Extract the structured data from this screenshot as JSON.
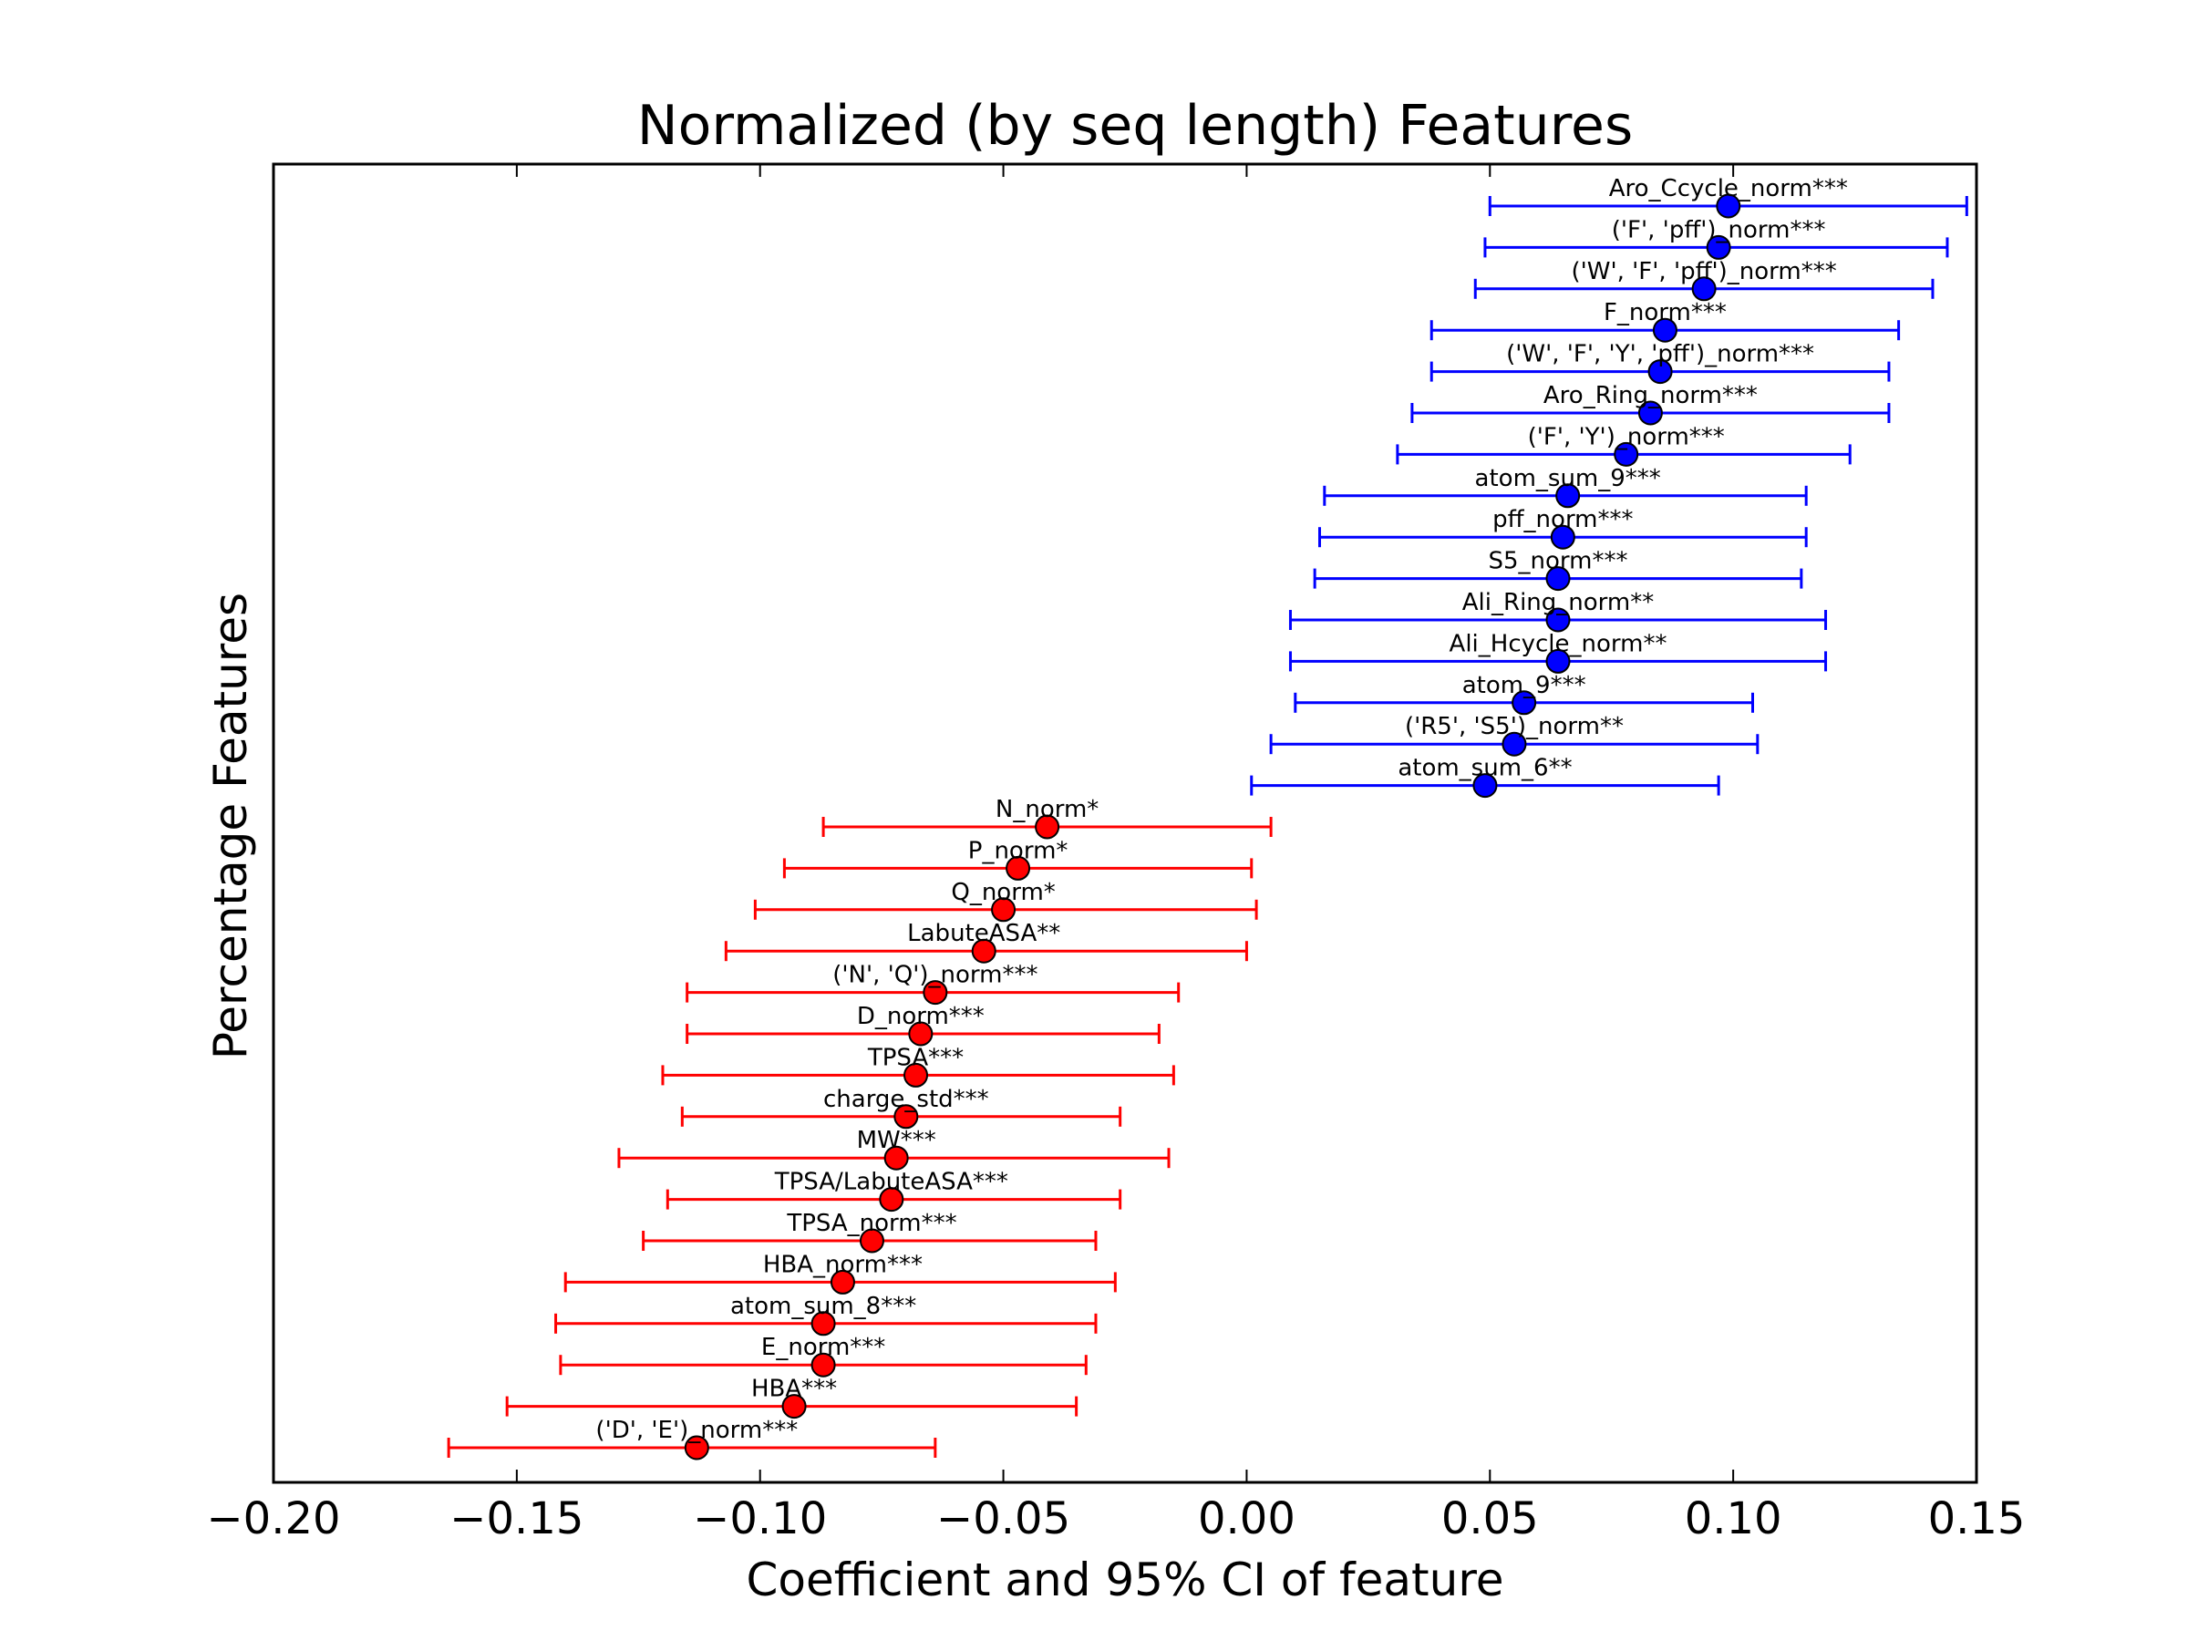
{
  "chart_data": {
    "type": "scatter",
    "title": "Normalized (by seq length) Features",
    "xlabel": "Coefficient and 95% CI of feature",
    "ylabel": "Percentage Features",
    "xlim": [
      -0.2,
      0.15
    ],
    "xticks": [
      "−0.20",
      "−0.15",
      "−0.10",
      "−0.05",
      "0.00",
      "0.05",
      "0.10",
      "0.15"
    ],
    "xtick_values": [
      -0.2,
      -0.15,
      -0.1,
      -0.05,
      0.0,
      0.05,
      0.1,
      0.15
    ],
    "grid": false,
    "colors": {
      "positive": "#0000ff",
      "negative": "#ff0000"
    },
    "features": [
      {
        "label": "Aro_Ccycle_norm***",
        "coef": 0.099,
        "lo": 0.05,
        "hi": 0.148
      },
      {
        "label": "('F', 'pff')_norm***",
        "coef": 0.097,
        "lo": 0.049,
        "hi": 0.144
      },
      {
        "label": "('W', 'F', 'pff')_norm***",
        "coef": 0.094,
        "lo": 0.047,
        "hi": 0.141
      },
      {
        "label": "F_norm***",
        "coef": 0.086,
        "lo": 0.038,
        "hi": 0.134
      },
      {
        "label": "('W', 'F', 'Y', 'pff')_norm***",
        "coef": 0.085,
        "lo": 0.038,
        "hi": 0.132
      },
      {
        "label": "Aro_Ring_norm***",
        "coef": 0.083,
        "lo": 0.034,
        "hi": 0.132
      },
      {
        "label": "('F', 'Y')_norm***",
        "coef": 0.078,
        "lo": 0.031,
        "hi": 0.124
      },
      {
        "label": "atom_sum_9***",
        "coef": 0.066,
        "lo": 0.016,
        "hi": 0.115
      },
      {
        "label": "pff_norm***",
        "coef": 0.065,
        "lo": 0.015,
        "hi": 0.115
      },
      {
        "label": "S5_norm***",
        "coef": 0.064,
        "lo": 0.014,
        "hi": 0.114
      },
      {
        "label": "Ali_Ring_norm**",
        "coef": 0.064,
        "lo": 0.009,
        "hi": 0.119
      },
      {
        "label": "Ali_Hcycle_norm**",
        "coef": 0.064,
        "lo": 0.009,
        "hi": 0.119
      },
      {
        "label": "atom_9***",
        "coef": 0.057,
        "lo": 0.01,
        "hi": 0.104
      },
      {
        "label": "('R5', 'S5')_norm**",
        "coef": 0.055,
        "lo": 0.005,
        "hi": 0.105
      },
      {
        "label": "atom_sum_6**",
        "coef": 0.049,
        "lo": 0.001,
        "hi": 0.097
      },
      {
        "label": "N_norm*",
        "coef": -0.041,
        "lo": -0.087,
        "hi": 0.005
      },
      {
        "label": "P_norm*",
        "coef": -0.047,
        "lo": -0.095,
        "hi": 0.001
      },
      {
        "label": "Q_norm*",
        "coef": -0.05,
        "lo": -0.101,
        "hi": 0.002
      },
      {
        "label": "LabuteASA**",
        "coef": -0.054,
        "lo": -0.107,
        "hi": 0.0
      },
      {
        "label": "('N', 'Q')_norm***",
        "coef": -0.064,
        "lo": -0.115,
        "hi": -0.014
      },
      {
        "label": "D_norm***",
        "coef": -0.067,
        "lo": -0.115,
        "hi": -0.018
      },
      {
        "label": "TPSA***",
        "coef": -0.068,
        "lo": -0.12,
        "hi": -0.015
      },
      {
        "label": "charge_std***",
        "coef": -0.07,
        "lo": -0.116,
        "hi": -0.026
      },
      {
        "label": "MW***",
        "coef": -0.072,
        "lo": -0.129,
        "hi": -0.016
      },
      {
        "label": "TPSA/LabuteASA***",
        "coef": -0.073,
        "lo": -0.119,
        "hi": -0.026
      },
      {
        "label": "TPSA_norm***",
        "coef": -0.077,
        "lo": -0.124,
        "hi": -0.031
      },
      {
        "label": "HBA_norm***",
        "coef": -0.083,
        "lo": -0.14,
        "hi": -0.027
      },
      {
        "label": "atom_sum_8***",
        "coef": -0.087,
        "lo": -0.142,
        "hi": -0.031
      },
      {
        "label": "E_norm***",
        "coef": -0.087,
        "lo": -0.141,
        "hi": -0.033
      },
      {
        "label": "HBA***",
        "coef": -0.093,
        "lo": -0.152,
        "hi": -0.035
      },
      {
        "label": "('D', 'E')_norm***",
        "coef": -0.113,
        "lo": -0.164,
        "hi": -0.064
      }
    ]
  }
}
